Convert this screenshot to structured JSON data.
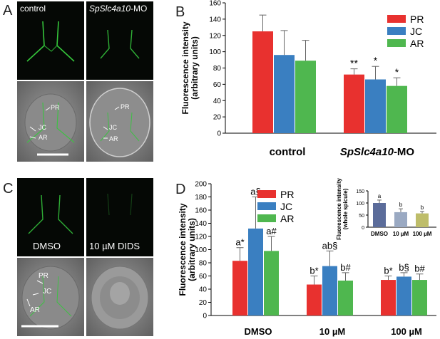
{
  "panels": {
    "A": {
      "letter": "A",
      "label_left": "control",
      "label_right_italic": "SpSlc4a10",
      "label_right_suffix": "-MO",
      "annotations_left": [
        "PR",
        "JC",
        "AR"
      ],
      "annotations_right": [
        "PR",
        "JC",
        "AR"
      ]
    },
    "B": {
      "letter": "B",
      "chart_data": {
        "type": "bar",
        "ylabel": "Fluorescence intensity\n(arbitrary units)",
        "ylim": [
          0,
          160
        ],
        "yticks": [
          0,
          20,
          40,
          60,
          80,
          100,
          120,
          140,
          160
        ],
        "categories": [
          "control",
          "SpSlc4a10-MO"
        ],
        "category_labels": [
          {
            "italic": "",
            "suffix": "control"
          },
          {
            "italic": "SpSlc4a10",
            "suffix": "-MO"
          }
        ],
        "series": [
          {
            "name": "PR",
            "color": "#e8312f",
            "values": [
              125,
              72
            ],
            "errors": [
              20,
              7
            ],
            "marks": [
              "",
              "**"
            ]
          },
          {
            "name": "JC",
            "color": "#3a7fc1",
            "values": [
              96,
              66
            ],
            "errors": [
              30,
              16
            ],
            "marks": [
              "",
              "*"
            ]
          },
          {
            "name": "AR",
            "color": "#4fb74f",
            "values": [
              89,
              58
            ],
            "errors": [
              25,
              10
            ],
            "marks": [
              "",
              "*"
            ]
          }
        ],
        "legend_position": "top-right"
      }
    },
    "C": {
      "letter": "C",
      "label_left": "DMSO",
      "label_right": "10 µM DIDS",
      "annotations": [
        "PR",
        "JC",
        "AR"
      ]
    },
    "D": {
      "letter": "D",
      "chart_data": {
        "type": "bar",
        "ylabel": "Fluorescence intensity\n(arbitrary units)",
        "ylim": [
          0,
          200
        ],
        "yticks": [
          0,
          20,
          40,
          60,
          80,
          100,
          120,
          140,
          160,
          180,
          200
        ],
        "categories": [
          "DMSO",
          "10 µM",
          "100 µM"
        ],
        "series": [
          {
            "name": "PR",
            "color": "#e8312f",
            "values": [
              83,
              47,
              54
            ],
            "errors": [
              20,
              13,
              6
            ],
            "marks": [
              "a*",
              "b*",
              "b*"
            ]
          },
          {
            "name": "JC",
            "color": "#3a7fc1",
            "values": [
              132,
              75,
              59
            ],
            "errors": [
              48,
              23,
              6
            ],
            "marks": [
              "a§",
              "ab§",
              "b§"
            ]
          },
          {
            "name": "AR",
            "color": "#4fb74f",
            "values": [
              98,
              53,
              54
            ],
            "errors": [
              22,
              12,
              9
            ],
            "marks": [
              "a#",
              "b#",
              "b#"
            ]
          }
        ],
        "legend_position": "top-center",
        "inset": {
          "type": "bar",
          "ylabel": "Fluorescence intensity\n(whole spicule)",
          "ylim": [
            0,
            150
          ],
          "yticks": [
            0,
            50,
            100,
            150
          ],
          "categories": [
            "DMSO",
            "10 µM",
            "100 µM"
          ],
          "values": [
            100,
            62,
            57
          ],
          "errors": [
            12,
            14,
            8
          ],
          "colors": [
            "#5b6c9a",
            "#9aa9c2",
            "#bebd6a"
          ],
          "marks": [
            "a",
            "b",
            "b"
          ]
        }
      }
    }
  }
}
